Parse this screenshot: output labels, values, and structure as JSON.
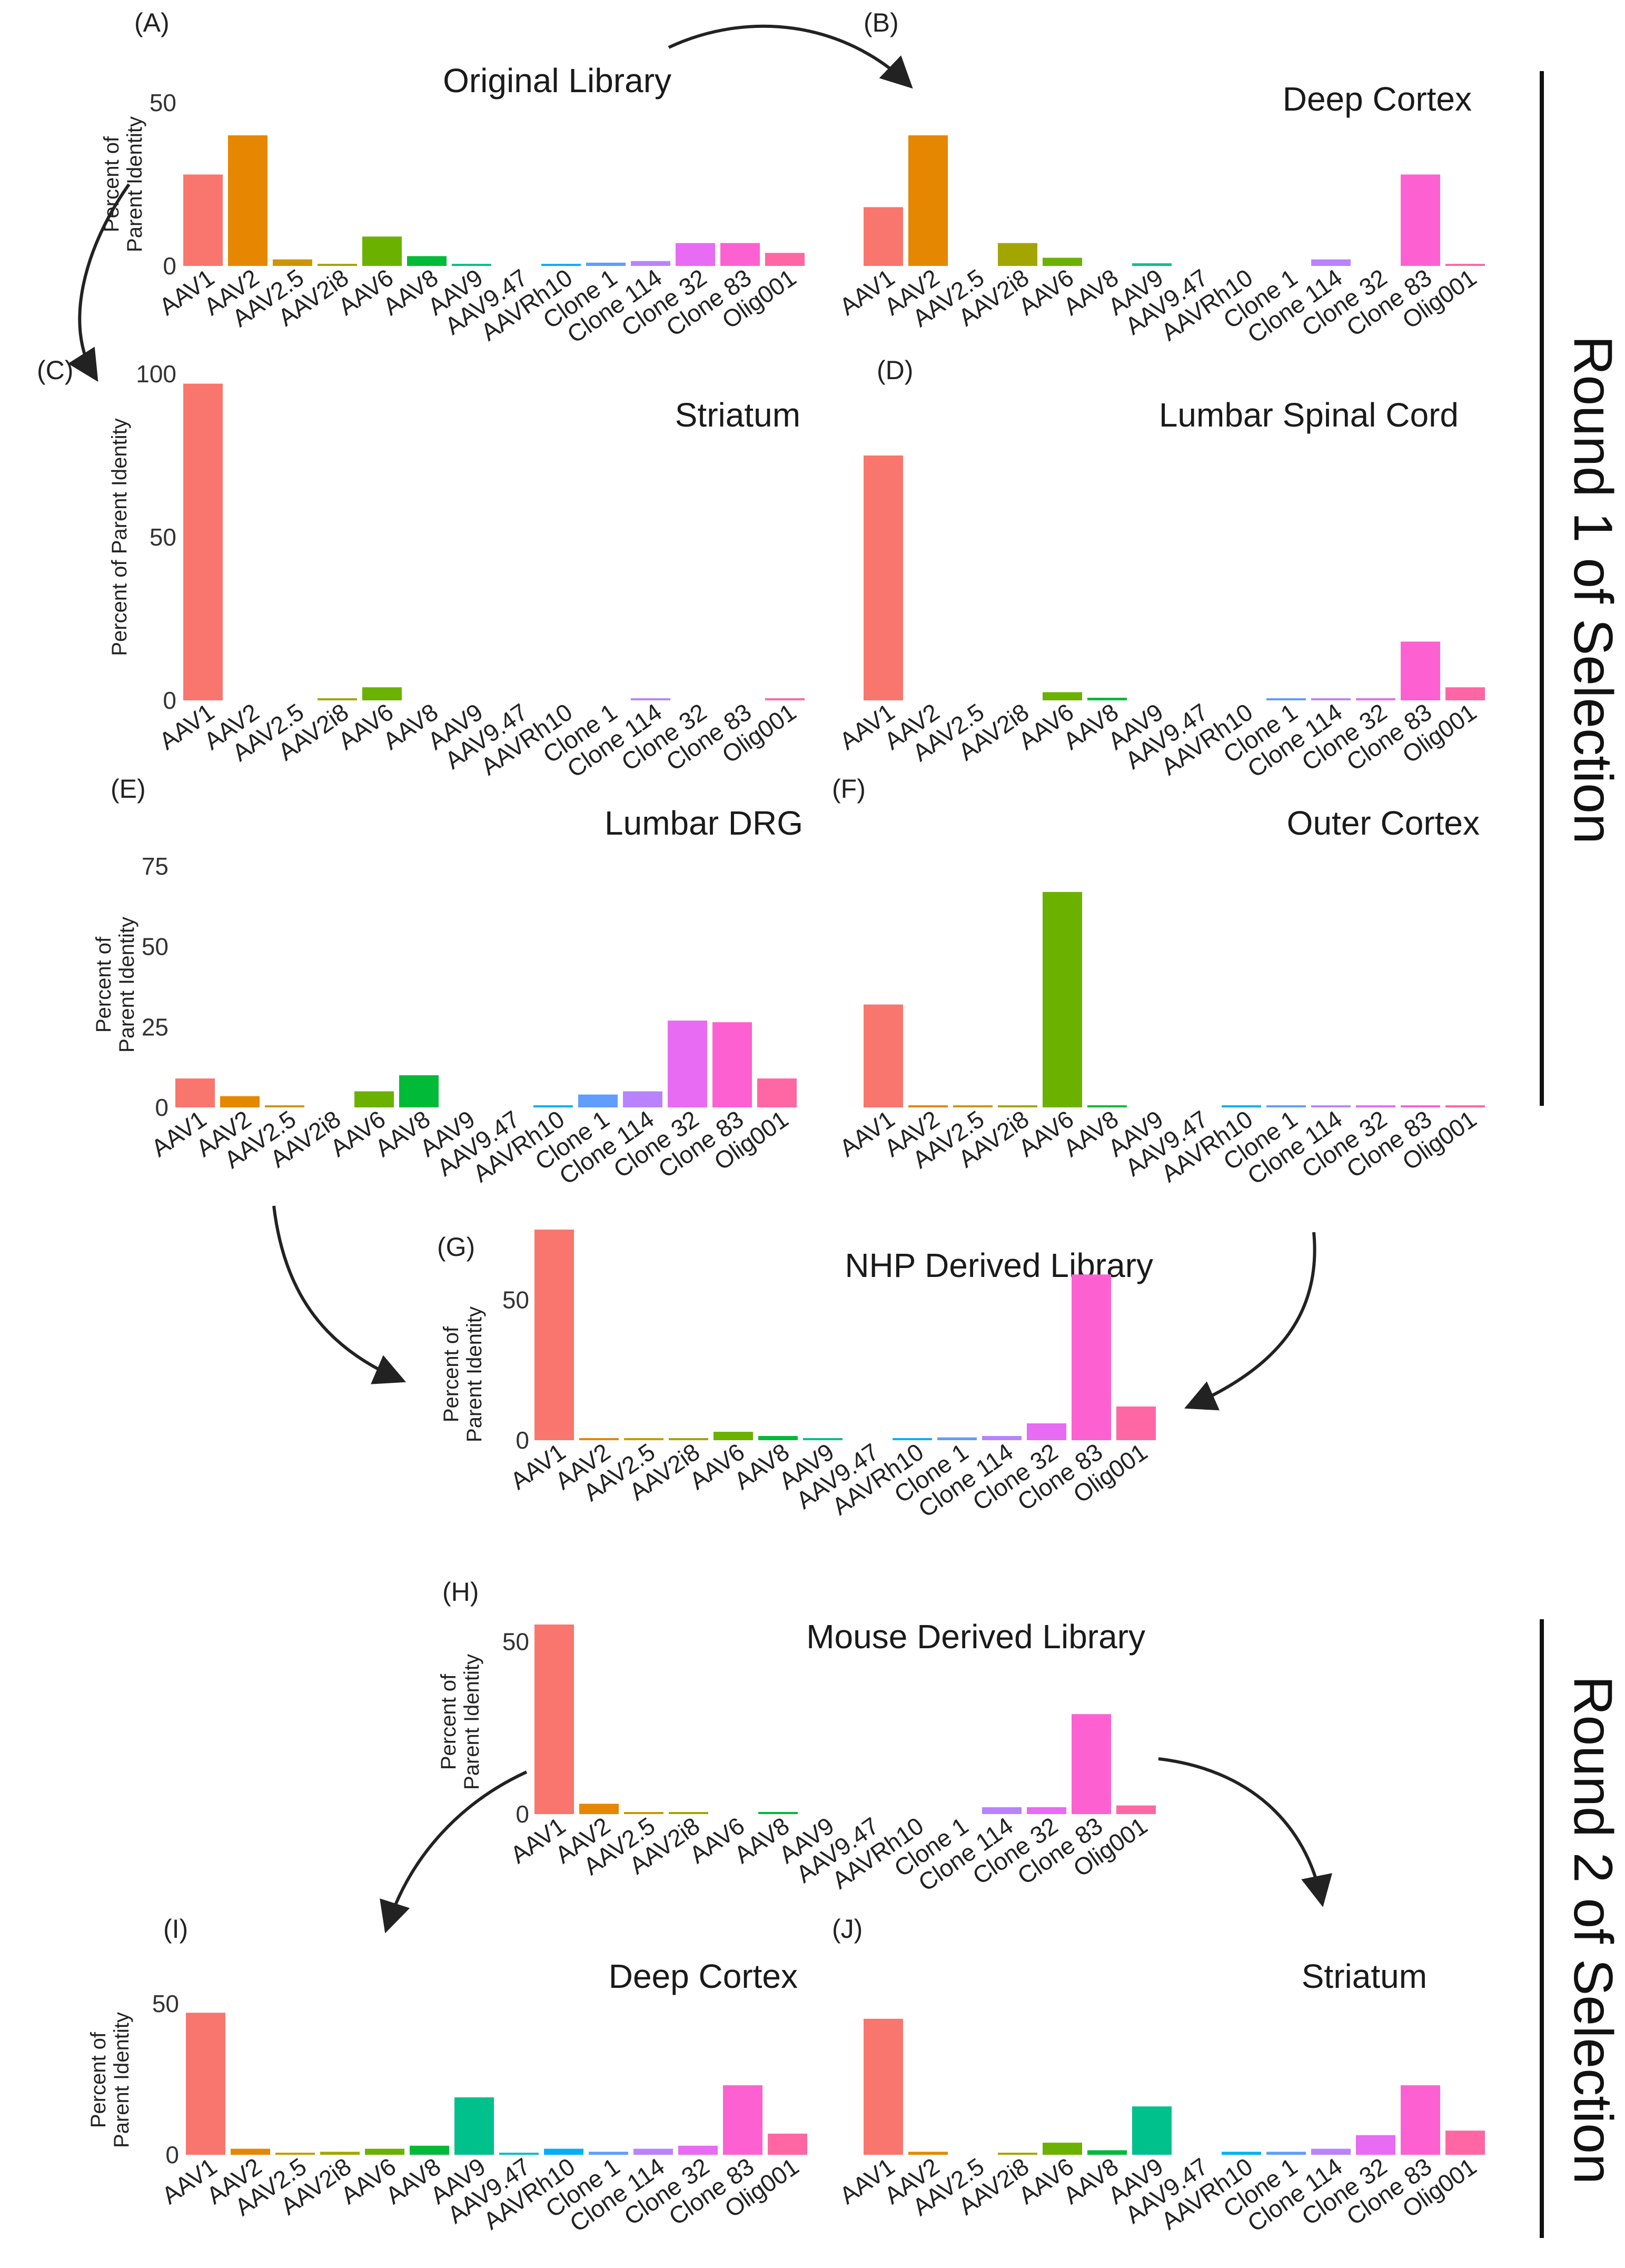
{
  "categories": [
    "AAV1",
    "AAV2",
    "AAV2.5",
    "AAV2i8",
    "AAV6",
    "AAV8",
    "AAV9",
    "AAV9.47",
    "AAVRh10",
    "Clone 1",
    "Clone 114",
    "Clone 32",
    "Clone 83",
    "Olig001"
  ],
  "colors": [
    "#F8766D",
    "#E58700",
    "#C99800",
    "#A3A500",
    "#6BB100",
    "#00BA38",
    "#00C08B",
    "#00BFC4",
    "#00B0F6",
    "#619CFF",
    "#B983FF",
    "#E76BF3",
    "#FD61D1",
    "#FF67A4"
  ],
  "rounds": {
    "round1": "Round 1 of Selection",
    "round2": "Round 2 of Selection"
  },
  "chart_data": [
    {
      "id": "A",
      "letter": "(A)",
      "type": "bar",
      "title": "Original Library",
      "ylabel": [
        "Percent of",
        "Parent Identity"
      ],
      "ylim": [
        0,
        50
      ],
      "yticks": [
        0,
        50
      ],
      "values": [
        28,
        40,
        2,
        0.5,
        9,
        3,
        0.5,
        0,
        0.5,
        1,
        1.5,
        7,
        7,
        4
      ]
    },
    {
      "id": "B",
      "letter": "(B)",
      "type": "bar",
      "title": "Deep Cortex",
      "ylabel": [],
      "ylim": [
        0,
        50
      ],
      "yticks": [],
      "values": [
        18,
        40,
        0,
        7,
        2.5,
        0,
        0.8,
        0,
        0,
        0,
        2,
        0,
        28,
        0.5
      ]
    },
    {
      "id": "C",
      "letter": "(C)",
      "type": "bar",
      "title": "Striatum",
      "ylabel": [
        "Percent of Parent Identity"
      ],
      "ylim": [
        0,
        100
      ],
      "yticks": [
        0,
        50,
        100
      ],
      "values": [
        97,
        0,
        0,
        0.5,
        4,
        0,
        0,
        0,
        0,
        0,
        0.5,
        0,
        0,
        0.5
      ]
    },
    {
      "id": "D",
      "letter": "(D)",
      "type": "bar",
      "title": "Lumbar Spinal Cord",
      "ylabel": [],
      "ylim": [
        0,
        100
      ],
      "yticks": [],
      "values": [
        75,
        0,
        0,
        0,
        2.5,
        0.8,
        0,
        0,
        0,
        0.3,
        0.5,
        0.5,
        18,
        4
      ]
    },
    {
      "id": "E",
      "letter": "(E)",
      "type": "bar",
      "title": "Lumbar DRG",
      "ylabel": [
        "Percent of",
        "Parent Identity"
      ],
      "ylim": [
        0,
        75
      ],
      "yticks": [
        0,
        25,
        50,
        75
      ],
      "values": [
        9,
        3.5,
        0.5,
        0,
        5,
        10,
        0,
        0,
        0.5,
        4,
        5,
        27,
        26.5,
        9
      ]
    },
    {
      "id": "F",
      "letter": "(F)",
      "type": "bar",
      "title": "Outer Cortex",
      "ylabel": [],
      "ylim": [
        0,
        75
      ],
      "yticks": [],
      "values": [
        32,
        0.3,
        0.3,
        0.3,
        67,
        0.3,
        0,
        0,
        0.3,
        0.3,
        0.3,
        0.5,
        0.3,
        0.3
      ]
    },
    {
      "id": "G",
      "letter": "(G)",
      "type": "bar",
      "title": "NHP Derived Library",
      "ylabel": [
        "Percent of",
        "Parent Identity"
      ],
      "ylim": [
        0,
        75
      ],
      "yticks": [
        0,
        50
      ],
      "values": [
        75,
        0.3,
        0.3,
        0.3,
        3,
        1.5,
        0.3,
        0,
        0.5,
        1,
        1.5,
        6,
        59,
        12
      ]
    },
    {
      "id": "H",
      "letter": "(H)",
      "type": "bar",
      "title": "Mouse Derived Library",
      "ylabel": [
        "Percent of",
        "Parent Identity"
      ],
      "ylim": [
        0,
        55
      ],
      "yticks": [
        0,
        50
      ],
      "values": [
        55,
        3,
        0.5,
        0.3,
        0,
        0.3,
        0,
        0,
        0,
        0,
        2,
        2,
        29,
        2.5
      ]
    },
    {
      "id": "I",
      "letter": "(I)",
      "type": "bar",
      "title": "Deep Cortex",
      "ylabel": [
        "Percent of",
        "Parent Identity"
      ],
      "ylim": [
        0,
        50
      ],
      "yticks": [
        0,
        50
      ],
      "values": [
        47,
        2,
        0.5,
        1,
        2,
        3,
        19,
        0.5,
        2,
        1,
        2,
        3,
        23,
        7
      ]
    },
    {
      "id": "J",
      "letter": "(J)",
      "type": "bar",
      "title": "Striatum",
      "ylabel": [],
      "ylim": [
        0,
        50
      ],
      "yticks": [],
      "values": [
        45,
        1,
        0,
        0.5,
        4,
        1.5,
        16,
        0,
        1,
        1,
        2,
        6.5,
        23,
        8
      ]
    }
  ]
}
